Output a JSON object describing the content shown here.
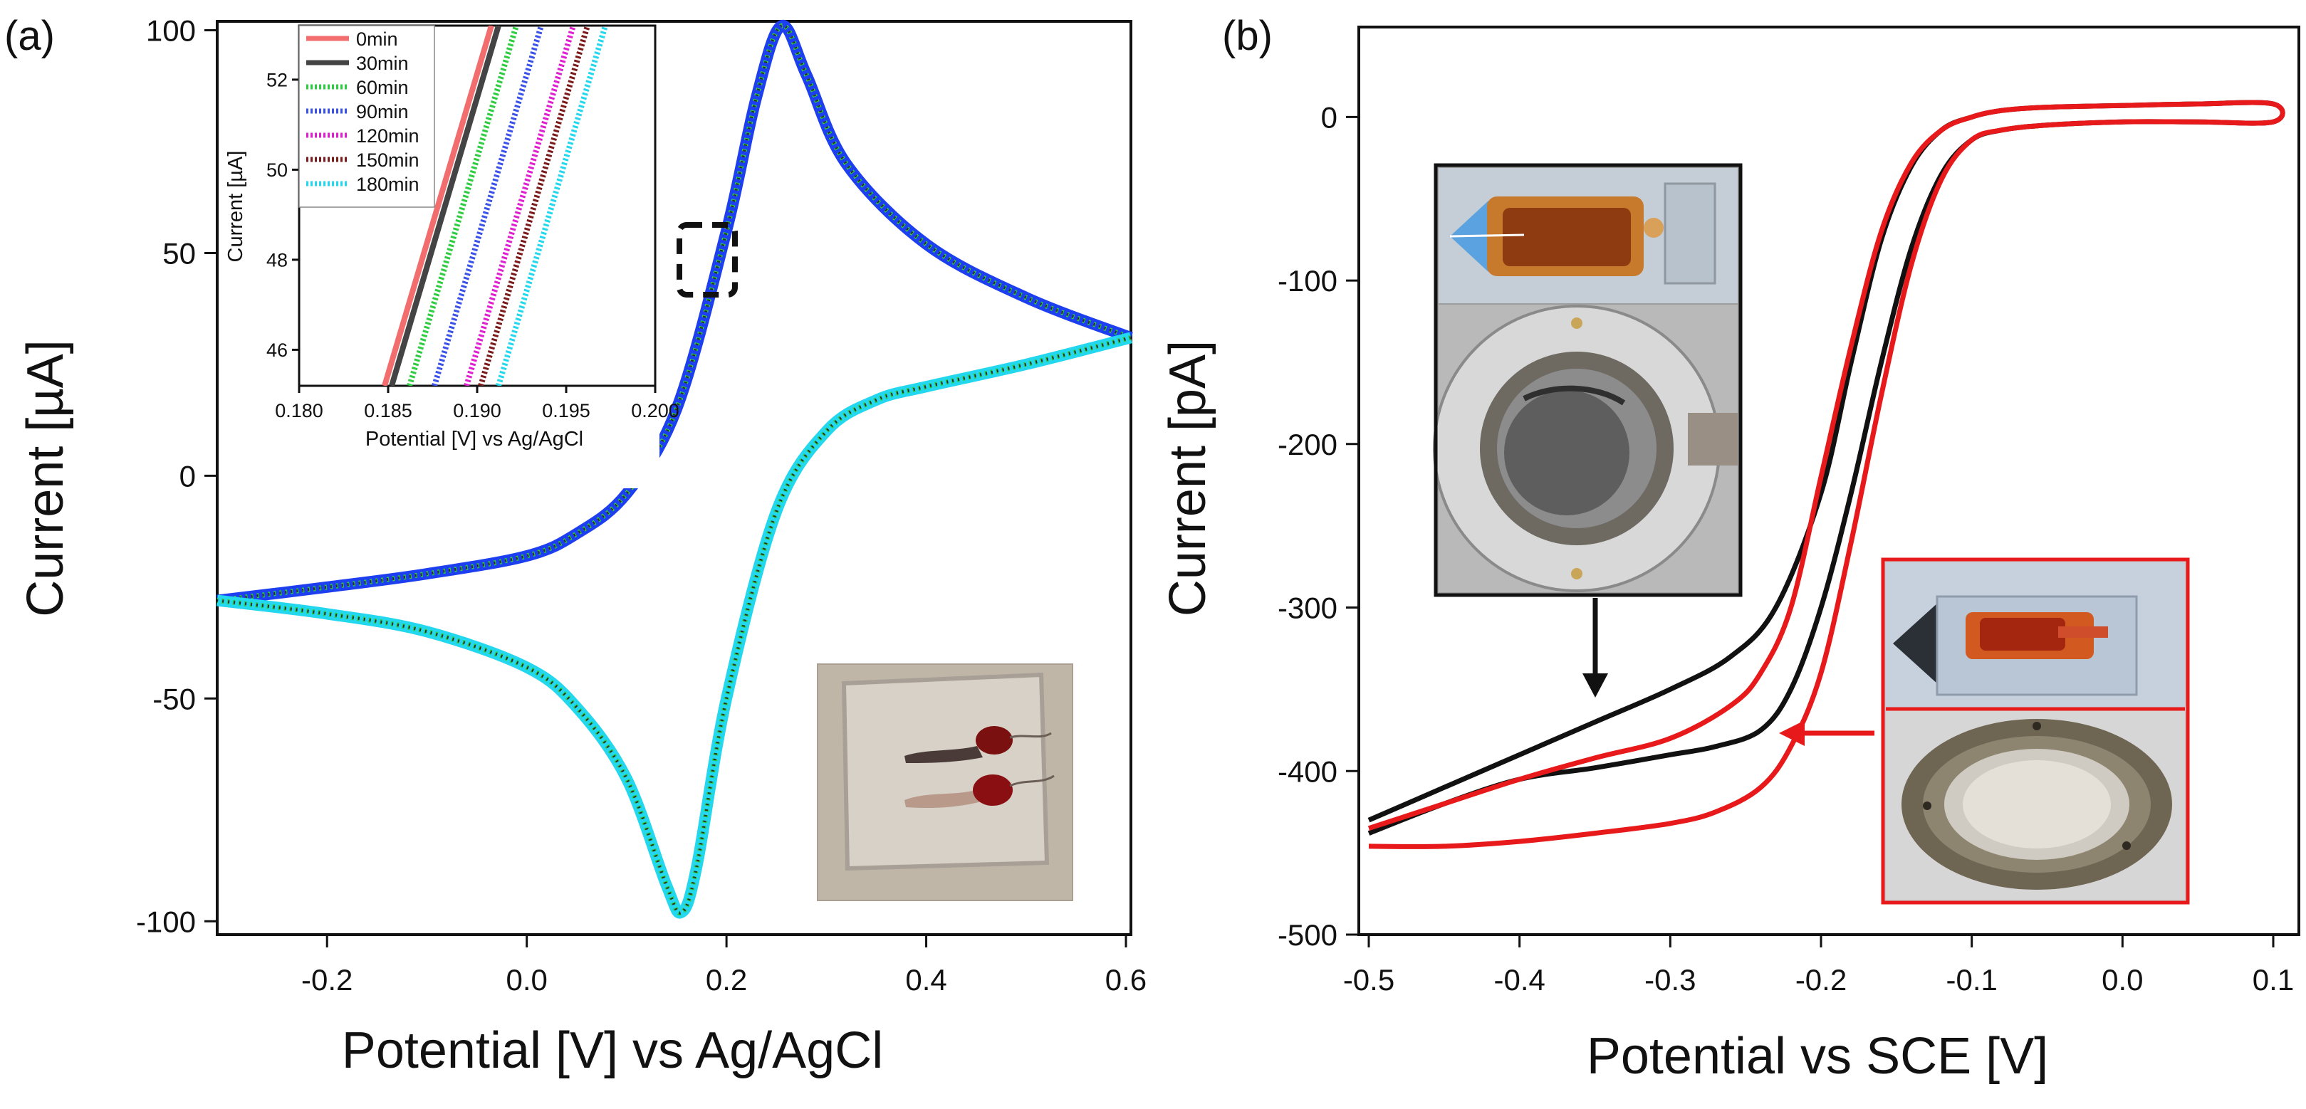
{
  "chart_data": [
    {
      "panel_label": "(a)",
      "type": "line",
      "xlabel": "Potential [V] vs Ag/AgCl",
      "ylabel": "Current [µA]",
      "xlim": [
        -0.31,
        0.605
      ],
      "ylim": [
        -103,
        102
      ],
      "x_ticks": [
        -0.2,
        0.0,
        0.2,
        0.4,
        0.6
      ],
      "x_tick_labels": [
        "-0.2",
        "0.0",
        "0.2",
        "0.4",
        "0.6"
      ],
      "y_ticks": [
        -100,
        -50,
        0,
        50,
        100
      ],
      "y_tick_labels": [
        "-100",
        "-50",
        "0",
        "50",
        "100"
      ],
      "grid": false,
      "colors": {
        "forward": "#1d3ff0",
        "reverse": "#22d7ee",
        "overlay": "#2e2e2e",
        "green": "#2ecc40"
      },
      "series": [
        {
          "name": "CV forward sweep (anodic)",
          "x": [
            -0.31,
            -0.2,
            -0.1,
            0.0,
            0.05,
            0.1,
            0.15,
            0.2,
            0.23,
            0.255,
            0.28,
            0.32,
            0.4,
            0.5,
            0.605
          ],
          "y": [
            -28,
            -25,
            -22,
            -18,
            -13,
            -4,
            15,
            55,
            85,
            101,
            90,
            70,
            52,
            40,
            31
          ]
        },
        {
          "name": "CV reverse sweep (cathodic)",
          "x": [
            0.605,
            0.5,
            0.4,
            0.35,
            0.3,
            0.25,
            0.2,
            0.17,
            0.155,
            0.14,
            0.1,
            0.05,
            0.0,
            -0.1,
            -0.2,
            -0.31
          ],
          "y": [
            31,
            25,
            20,
            17,
            10,
            -8,
            -50,
            -88,
            -98,
            -92,
            -68,
            -52,
            -43,
            -35,
            -31,
            -28
          ]
        }
      ],
      "inset": {
        "xlabel": "Potential [V] vs Ag/AgCl",
        "ylabel": "Current [µA]",
        "xlim": [
          0.18,
          0.2
        ],
        "ylim": [
          45.2,
          53.2
        ],
        "x_ticks": [
          0.18,
          0.185,
          0.19,
          0.195,
          0.2
        ],
        "x_tick_labels": [
          "0.180",
          "0.185",
          "0.190",
          "0.195",
          "0.200"
        ],
        "y_ticks": [
          46,
          48,
          50,
          52
        ],
        "y_tick_labels": [
          "46",
          "48",
          "50",
          "52"
        ],
        "series": [
          {
            "name": "0min",
            "color": "#f26d6d",
            "dash": "solid",
            "x": [
              0.1848,
              0.1908
            ],
            "y": [
              45.2,
              53.2
            ]
          },
          {
            "name": "30min",
            "color": "#444444",
            "dash": "solid",
            "x": [
              0.1852,
              0.1912
            ],
            "y": [
              45.2,
              53.2
            ]
          },
          {
            "name": "60min",
            "color": "#2ecc40",
            "dash": "dotted",
            "x": [
              0.1862,
              0.1922
            ],
            "y": [
              45.2,
              53.2
            ]
          },
          {
            "name": "90min",
            "color": "#3b52e8",
            "dash": "dotted",
            "x": [
              0.1876,
              0.1936
            ],
            "y": [
              45.2,
              53.2
            ]
          },
          {
            "name": "120min",
            "color": "#e01fd0",
            "dash": "dotted",
            "x": [
              0.1894,
              0.1954
            ],
            "y": [
              45.2,
              53.2
            ]
          },
          {
            "name": "150min",
            "color": "#7a1a1a",
            "dash": "dotted",
            "x": [
              0.1902,
              0.1962
            ],
            "y": [
              45.2,
              53.2
            ]
          },
          {
            "name": "180min",
            "color": "#22d7ee",
            "dash": "dotted",
            "x": [
              0.1912,
              0.1972
            ],
            "y": [
              45.2,
              53.2
            ]
          }
        ]
      },
      "annotations": [
        "zoom box near 0.19 V, 48 µA",
        "photo of glass substrate with two electrodes"
      ]
    },
    {
      "panel_label": "(b)",
      "type": "line",
      "xlabel": "Potential vs SCE [V]",
      "ylabel": "Current [pA]",
      "xlim": [
        -0.5,
        0.1
      ],
      "ylim": [
        -500,
        55
      ],
      "x_ticks": [
        -0.5,
        -0.4,
        -0.3,
        -0.2,
        -0.1,
        0.0,
        0.1
      ],
      "x_tick_labels": [
        "-0.5",
        "-0.4",
        "-0.3",
        "-0.2",
        "-0.1",
        "0.0",
        "0.1"
      ],
      "y_ticks": [
        -500,
        -400,
        -300,
        -200,
        -100,
        0
      ],
      "y_tick_labels": [
        "-500",
        "-400",
        "-300",
        "-200",
        "-100",
        "0"
      ],
      "grid": false,
      "series": [
        {
          "name": "black cell, loop",
          "color": "#111111",
          "x": [
            -0.5,
            -0.45,
            -0.4,
            -0.35,
            -0.3,
            -0.26,
            -0.23,
            -0.2,
            -0.18,
            -0.16,
            -0.14,
            -0.12,
            -0.1,
            -0.08,
            -0.05,
            0.0,
            0.05,
            0.1,
            0.1,
            0.05,
            0.0,
            -0.05,
            -0.08,
            -0.1,
            -0.12,
            -0.14,
            -0.16,
            -0.18,
            -0.2,
            -0.22,
            -0.24,
            -0.27,
            -0.3,
            -0.35,
            -0.4,
            -0.45,
            -0.5
          ],
          "y": [
            -430,
            -410,
            -390,
            -370,
            -350,
            -330,
            -300,
            -230,
            -150,
            -75,
            -30,
            -8,
            0,
            4,
            6,
            7,
            8,
            8,
            -3,
            -3,
            -3,
            -5,
            -8,
            -14,
            -35,
            -80,
            -150,
            -230,
            -300,
            -350,
            -375,
            -385,
            -390,
            -398,
            -405,
            -420,
            -438
          ]
        },
        {
          "name": "red cell, loop",
          "color": "#e8191a",
          "x": [
            -0.5,
            -0.45,
            -0.4,
            -0.35,
            -0.3,
            -0.26,
            -0.24,
            -0.22,
            -0.2,
            -0.18,
            -0.16,
            -0.14,
            -0.12,
            -0.1,
            -0.08,
            -0.05,
            0.0,
            0.05,
            0.1,
            0.1,
            0.05,
            0.0,
            -0.05,
            -0.08,
            -0.1,
            -0.12,
            -0.14,
            -0.16,
            -0.18,
            -0.2,
            -0.22,
            -0.24,
            -0.27,
            -0.3,
            -0.35,
            -0.4,
            -0.45,
            -0.5
          ],
          "y": [
            -435,
            -420,
            -405,
            -392,
            -380,
            -360,
            -340,
            -300,
            -220,
            -140,
            -70,
            -28,
            -8,
            0,
            4,
            6,
            7,
            8,
            8,
            -3,
            -3,
            -3,
            -5,
            -8,
            -14,
            -38,
            -90,
            -170,
            -260,
            -340,
            -385,
            -410,
            -425,
            -432,
            -438,
            -443,
            -446,
            -446
          ]
        }
      ],
      "annotations": [
        "black-framed photo of dark electrochemical cell",
        "red-framed photo of red electrochemical cell"
      ]
    }
  ]
}
